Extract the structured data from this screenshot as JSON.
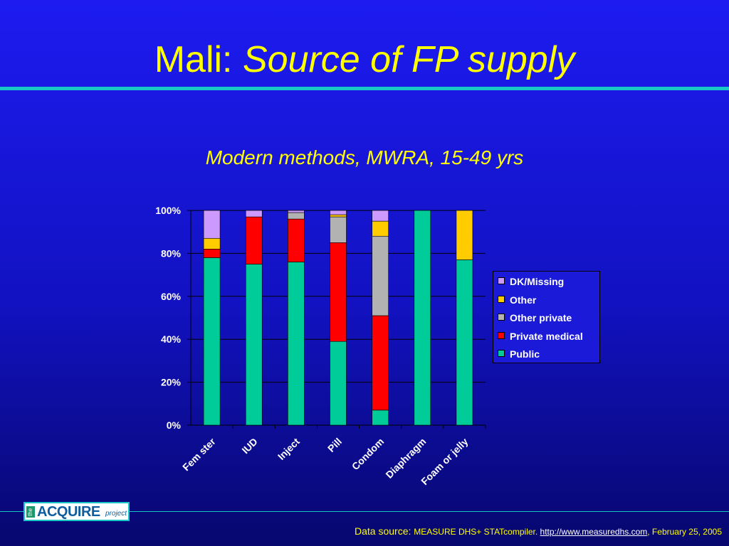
{
  "slide": {
    "title_prefix": "Mali: ",
    "title_italic": "Source of FP supply",
    "subtitle": "Modern methods, MWRA, 15-49 yrs"
  },
  "logo": {
    "small": "the",
    "main": "ACQUIRE",
    "sub": "project"
  },
  "footer": {
    "label": "Data source: ",
    "source": "MEASURE DHS+ STATcompiler. ",
    "link": "http://www.measuredhs.com",
    "date": ", February 25, 2005"
  },
  "colors": {
    "background": "#1414c8",
    "accent_rule": "#19c6c6",
    "title_text": "#ffff00"
  },
  "chart_data": {
    "type": "bar",
    "stacked": true,
    "categories": [
      "Fem ster",
      "IUD",
      "Inject",
      "Pill",
      "Condom",
      "Diaphragm",
      "Foam or jelly"
    ],
    "series": [
      {
        "name": "Public",
        "color": "#00cc99",
        "values": [
          78,
          75,
          76,
          39,
          7,
          100,
          77
        ]
      },
      {
        "name": "Private medical",
        "color": "#ff0000",
        "values": [
          4,
          22,
          20,
          46,
          44,
          0,
          0
        ]
      },
      {
        "name": "Other private",
        "color": "#b2b2b2",
        "values": [
          0,
          0,
          3,
          12,
          37,
          0,
          0
        ]
      },
      {
        "name": "Other",
        "color": "#ffcc00",
        "values": [
          5,
          0,
          0,
          1,
          7,
          0,
          23
        ]
      },
      {
        "name": "DK/Missing",
        "color": "#cc99ff",
        "values": [
          13,
          3,
          1,
          2,
          5,
          0,
          0
        ]
      }
    ],
    "legend_order": [
      "DK/Missing",
      "Other",
      "Other private",
      "Private medical",
      "Public"
    ],
    "yticks": [
      "0%",
      "20%",
      "40%",
      "60%",
      "80%",
      "100%"
    ],
    "ylim": [
      0,
      100
    ],
    "grid": true,
    "legend_position": "right"
  }
}
